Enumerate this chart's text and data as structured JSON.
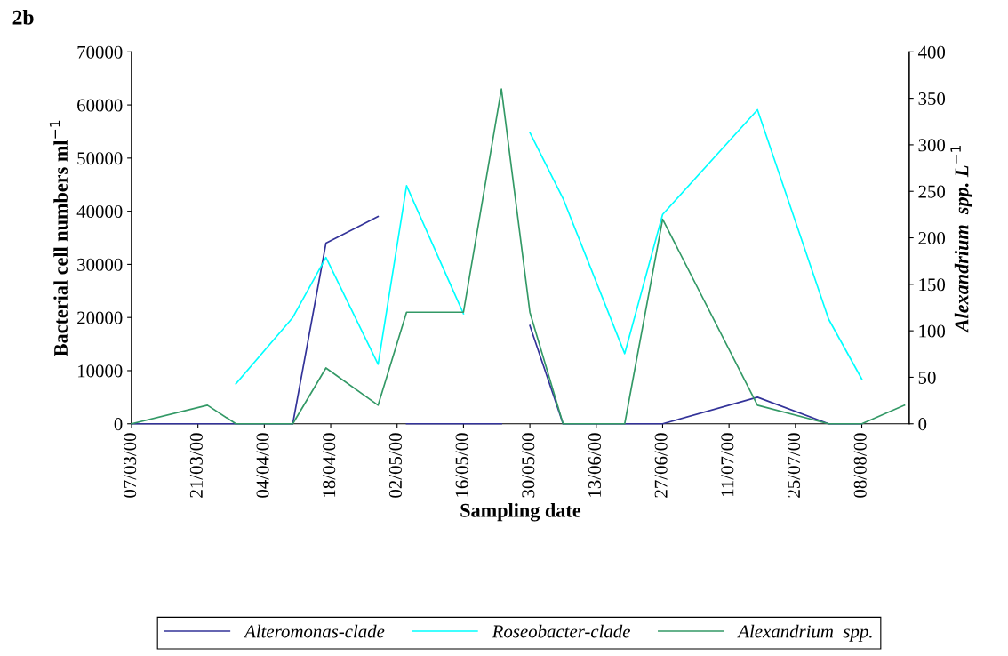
{
  "chart_data": {
    "type": "line",
    "annotations": [
      "2b"
    ],
    "xlabel": "Sampling date",
    "ylabel": "Bacterial cell numbers ml$^{−1}$",
    "y2label": "Alexandrium  spp. L$^{−1}$",
    "x": [
      "2000-03-07",
      "2000-03-23",
      "2000-03-29",
      "2000-04-10",
      "2000-04-17",
      "2000-04-28",
      "2000-05-04",
      "2000-05-16",
      "2000-05-24",
      "2000-05-30",
      "2000-06-06",
      "2000-06-19",
      "2000-06-27",
      "2000-07-17",
      "2000-08-01",
      "2000-08-08",
      "2000-08-17"
    ],
    "series": [
      {
        "name": "Alteromonas-clade",
        "color": "#333399",
        "x": [
          "2000-03-07",
          "2000-03-23",
          "2000-03-29",
          "2000-04-10",
          "2000-04-17",
          "2000-04-28",
          "2000-05-01",
          "2000-05-04",
          "2000-05-16",
          "2000-05-24",
          "2000-05-27",
          "2000-05-30",
          "2000-06-06",
          "2000-06-19",
          "2000-06-27",
          "2000-07-17",
          "2000-08-01",
          "2000-08-08"
        ],
        "values": [
          0,
          0,
          0,
          0,
          34000,
          39000,
          null,
          0,
          0,
          0,
          null,
          18500,
          0,
          0,
          0,
          5000,
          0,
          0
        ]
      },
      {
        "name": "Roseobacter-clade",
        "color": "#00ffff",
        "values": [
          null,
          null,
          7500,
          20000,
          31300,
          11200,
          44800,
          20700,
          null,
          54800,
          42400,
          13200,
          39400,
          59100,
          19700,
          8400,
          null
        ]
      },
      {
        "name": "Alexandrium  spp.",
        "color": "#339966",
        "axis": "y2",
        "values": [
          0,
          20,
          0,
          0,
          60,
          20,
          120,
          120,
          360,
          120,
          0,
          0,
          220,
          20,
          0,
          0,
          20
        ]
      }
    ],
    "xlim": [
      "2000-03-07",
      "2000-08-18"
    ],
    "xticks": [
      {
        "value": "2000-03-07",
        "label": "07/03/00"
      },
      {
        "value": "2000-03-21",
        "label": "21/03/00"
      },
      {
        "value": "2000-04-04",
        "label": "04/04/00"
      },
      {
        "value": "2000-04-18",
        "label": "18/04/00"
      },
      {
        "value": "2000-05-02",
        "label": "02/05/00"
      },
      {
        "value": "2000-05-16",
        "label": "16/05/00"
      },
      {
        "value": "2000-05-30",
        "label": "30/05/00"
      },
      {
        "value": "2000-06-13",
        "label": "13/06/00"
      },
      {
        "value": "2000-06-27",
        "label": "27/06/00"
      },
      {
        "value": "2000-07-11",
        "label": "11/07/00"
      },
      {
        "value": "2000-07-25",
        "label": "25/07/00"
      },
      {
        "value": "2000-08-08",
        "label": "08/08/00"
      }
    ],
    "ylim": [
      0,
      70000
    ],
    "yticks": [
      0,
      10000,
      20000,
      30000,
      40000,
      50000,
      60000,
      70000
    ],
    "y2lim": [
      0,
      400
    ],
    "y2ticks": [
      0,
      50,
      100,
      150,
      200,
      250,
      300,
      350,
      400
    ],
    "grid": false,
    "legend": "bottom",
    "marker": "none",
    "line_style": "solid"
  }
}
